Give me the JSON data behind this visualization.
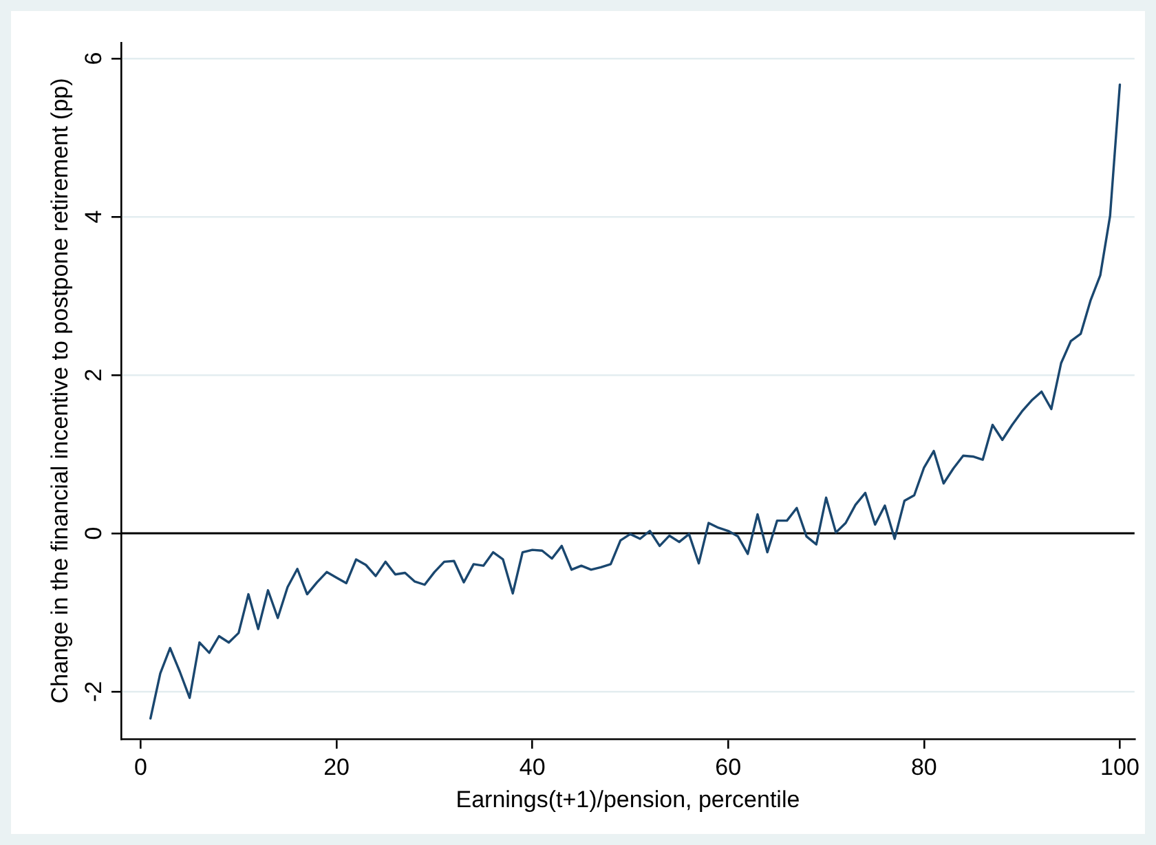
{
  "chart_data": {
    "type": "line",
    "xlabel": "Earnings(t+1)/pension, percentile",
    "ylabel": "Change in the financial incentive to postpone retirement (pp)",
    "x": [
      1,
      2,
      3,
      4,
      5,
      6,
      7,
      8,
      9,
      10,
      11,
      12,
      13,
      14,
      15,
      16,
      17,
      18,
      19,
      20,
      21,
      22,
      23,
      24,
      25,
      26,
      27,
      28,
      29,
      30,
      31,
      32,
      33,
      34,
      35,
      36,
      37,
      38,
      39,
      40,
      41,
      42,
      43,
      44,
      45,
      46,
      47,
      48,
      49,
      50,
      51,
      52,
      53,
      54,
      55,
      56,
      57,
      58,
      59,
      60,
      61,
      62,
      63,
      64,
      65,
      66,
      67,
      68,
      69,
      70,
      71,
      72,
      73,
      74,
      75,
      76,
      77,
      78,
      79,
      80,
      81,
      82,
      83,
      84,
      85,
      86,
      87,
      88,
      89,
      90,
      91,
      92,
      93,
      94,
      95,
      96,
      97,
      98,
      99,
      100
    ],
    "series": [
      {
        "color": "#1a476f",
        "values": [
          -2.34,
          -1.77,
          -1.45,
          -1.75,
          -2.08,
          -1.38,
          -1.51,
          -1.3,
          -1.38,
          -1.26,
          -0.77,
          -1.21,
          -0.72,
          -1.07,
          -0.68,
          -0.45,
          -0.77,
          -0.62,
          -0.49,
          -0.56,
          -0.63,
          -0.33,
          -0.4,
          -0.54,
          -0.36,
          -0.52,
          -0.5,
          -0.61,
          -0.65,
          -0.49,
          -0.36,
          -0.35,
          -0.62,
          -0.39,
          -0.41,
          -0.24,
          -0.33,
          -0.76,
          -0.24,
          -0.21,
          -0.22,
          -0.32,
          -0.16,
          -0.46,
          -0.41,
          -0.46,
          -0.43,
          -0.39,
          -0.09,
          -0.01,
          -0.07,
          0.03,
          -0.16,
          -0.03,
          -0.11,
          -0.01,
          -0.38,
          0.13,
          0.07,
          0.03,
          -0.04,
          -0.26,
          0.24,
          -0.24,
          0.16,
          0.16,
          0.32,
          -0.04,
          -0.14,
          0.45,
          0.01,
          0.13,
          0.36,
          0.51,
          0.11,
          0.35,
          -0.07,
          0.41,
          0.48,
          0.83,
          1.04,
          0.63,
          0.82,
          0.98,
          0.97,
          0.93,
          1.37,
          1.18,
          1.37,
          1.54,
          1.68,
          1.79,
          1.57,
          2.15,
          2.43,
          2.52,
          2.94,
          3.26,
          4.01,
          5.67
        ]
      }
    ],
    "xlim": [
      -2,
      101.5
    ],
    "ylim": [
      -2.6,
      6.2
    ],
    "xticks": [
      0,
      20,
      40,
      60,
      80,
      100
    ],
    "yticks": [
      -2,
      0,
      2,
      4,
      6
    ],
    "grid": "y",
    "marker": "none",
    "ref_lines": [
      {
        "axis": "y",
        "value": 0,
        "color": "#000000"
      }
    ]
  }
}
